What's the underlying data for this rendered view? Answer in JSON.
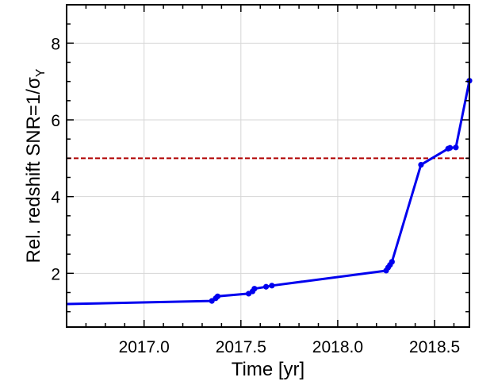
{
  "chart_data": {
    "type": "line",
    "title": "",
    "xlabel": "Time [yr]",
    "ylabel": "Rel. redshift SNR=1/σ",
    "ylabel_sub": "Y",
    "xlim": [
      2016.6,
      2018.68
    ],
    "ylim": [
      0.6,
      9.0
    ],
    "xticks": [
      2017.0,
      2017.5,
      2018.0,
      2018.5
    ],
    "xtick_labels": [
      "2017.0",
      "2017.5",
      "2018.0",
      "2018.5"
    ],
    "yticks": [
      2,
      4,
      6,
      8
    ],
    "ytick_labels": [
      "2",
      "4",
      "6",
      "8"
    ],
    "grid": true,
    "line_color": "#0000ee",
    "reference_line": {
      "y": 5.0,
      "style": "dashed",
      "color": "#b00000"
    },
    "series": [
      {
        "x": [
          2016.6,
          2017.35,
          2017.37,
          2017.38,
          2017.54,
          2017.56,
          2017.57,
          2017.63,
          2017.66,
          2018.25,
          2018.26,
          2018.27,
          2018.28,
          2018.43,
          2018.57,
          2018.58,
          2018.61,
          2018.68
        ],
        "y": [
          1.2,
          1.28,
          1.35,
          1.4,
          1.47,
          1.53,
          1.6,
          1.65,
          1.68,
          2.07,
          2.15,
          2.22,
          2.3,
          4.83,
          5.25,
          5.27,
          5.28,
          7.02
        ],
        "markers": [
          false,
          true,
          true,
          true,
          true,
          true,
          true,
          true,
          true,
          true,
          true,
          true,
          true,
          true,
          true,
          true,
          true,
          true
        ]
      }
    ]
  }
}
